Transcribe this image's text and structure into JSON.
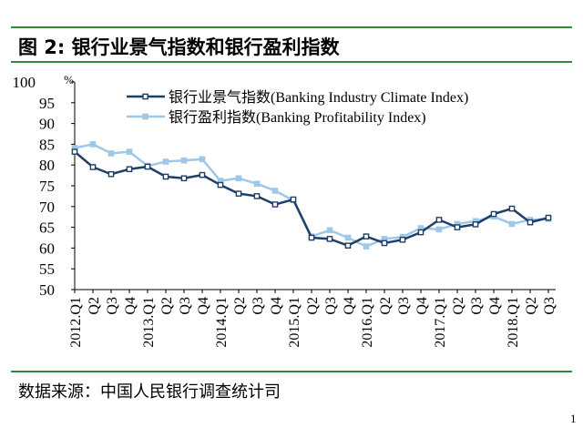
{
  "figure": {
    "title": "图 2: 银行业景气指数和银行盈利指数",
    "source": "数据来源：中国人民银行调查统计司",
    "page_number": "1"
  },
  "chart_data": {
    "type": "line",
    "ylim": [
      50,
      100
    ],
    "y_ticks": [
      "100%",
      "95",
      "90",
      "85",
      "80",
      "75",
      "70",
      "65",
      "60",
      "55",
      "50"
    ],
    "x": [
      "2012.Q1",
      "Q2",
      "Q3",
      "Q4",
      "2013.Q1",
      "Q2",
      "Q3",
      "Q4",
      "2014.Q1",
      "Q2",
      "Q3",
      "Q4",
      "2015.Q1",
      "Q2",
      "Q3",
      "Q4",
      "2016.Q1",
      "Q2",
      "Q3",
      "Q4",
      "2017.Q1",
      "Q2",
      "Q3",
      "Q4",
      "2018.Q1",
      "Q2",
      "Q3"
    ],
    "legend_position": "top-center",
    "grid": false,
    "series": [
      {
        "name": "银行业景气指数(Banking Industry Climate Index)",
        "color": "#1f3f68",
        "values": [
          83.2,
          79.5,
          77.8,
          79.0,
          79.6,
          77.2,
          76.8,
          77.6,
          75.2,
          73.1,
          72.5,
          70.5,
          71.7,
          62.5,
          62.2,
          60.6,
          62.8,
          61.2,
          62.0,
          63.8,
          66.8,
          65.0,
          65.7,
          68.2,
          69.5,
          66.2,
          67.3
        ]
      },
      {
        "name": "银行盈利指数(Banking Profitability Index)",
        "color": "#9fc8e8",
        "values": [
          84.1,
          85.0,
          82.8,
          83.2,
          79.8,
          80.8,
          81.1,
          81.4,
          76.2,
          76.8,
          75.5,
          73.8,
          71.5,
          62.8,
          64.3,
          62.5,
          60.4,
          62.2,
          62.7,
          64.8,
          64.5,
          65.8,
          66.5,
          67.6,
          65.8,
          66.8,
          67.0
        ]
      }
    ]
  }
}
